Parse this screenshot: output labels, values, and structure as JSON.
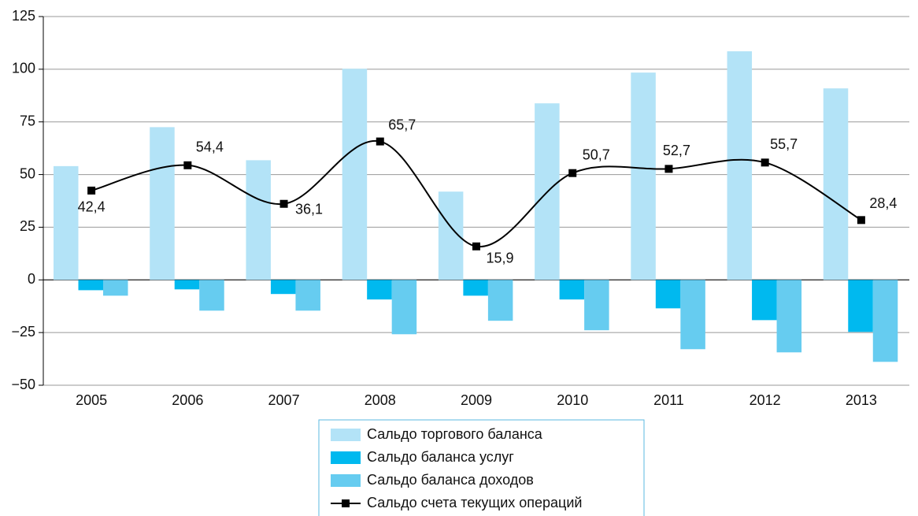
{
  "chart_data": {
    "type": "bar_line",
    "categories": [
      "2005",
      "2006",
      "2007",
      "2008",
      "2009",
      "2010",
      "2011",
      "2012",
      "2013"
    ],
    "series": [
      {
        "name": "Сальдо торгового баланса",
        "color": "#b3e3f7",
        "type": "bar",
        "values": [
          54,
          72.5,
          56.8,
          100.2,
          41.9,
          83.8,
          98.4,
          108.5,
          90.9
        ]
      },
      {
        "name": "Сальдо баланса услуг",
        "color": "#00b9ef",
        "type": "bar",
        "values": [
          -4.9,
          -4.5,
          -6.7,
          -9.3,
          -7.5,
          -9.3,
          -13.5,
          -19.1,
          -24.7
        ]
      },
      {
        "name": "Сальдо баланса доходов",
        "color": "#66ccf0",
        "type": "bar",
        "values": [
          -7.5,
          -14.6,
          -14.6,
          -25.8,
          -19.4,
          -23.9,
          -32.9,
          -34.4,
          -38.9
        ]
      },
      {
        "name": "Сальдо счета текущих операций",
        "color": "#000000",
        "type": "line",
        "values": [
          42.4,
          54.4,
          36.1,
          65.7,
          15.9,
          50.7,
          52.7,
          55.7,
          28.4
        ],
        "value_labels": [
          "42,4",
          "54,4",
          "36,1",
          "65,7",
          "15,9",
          "50,7",
          "52,7",
          "55,7",
          "28,4"
        ]
      }
    ],
    "ylim": [
      -50,
      125
    ],
    "yticks": [
      {
        "value": -50,
        "label": "−50"
      },
      {
        "value": -25,
        "label": "−25"
      },
      0,
      25,
      50,
      75,
      100,
      125
    ],
    "grid": true,
    "legend": "bottom"
  }
}
